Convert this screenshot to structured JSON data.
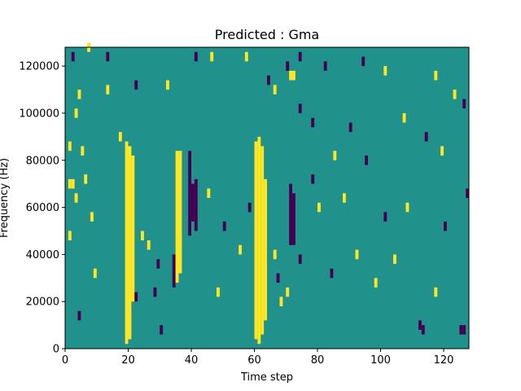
{
  "chart_data": {
    "type": "heatmap",
    "title": "Predicted : Gma",
    "xlabel": "Time step",
    "ylabel": "Frequency (Hz)",
    "xlim": [
      0,
      128
    ],
    "ylim": [
      0,
      128000
    ],
    "x_ticks": [
      0,
      20,
      40,
      60,
      80,
      100,
      120
    ],
    "y_ticks": [
      0,
      20000,
      40000,
      60000,
      80000,
      100000,
      120000
    ],
    "x_tick_labels": [
      "0",
      "20",
      "40",
      "60",
      "80",
      "100",
      "120"
    ],
    "y_tick_labels": [
      "0",
      "20000",
      "40000",
      "60000",
      "80000",
      "100000",
      "120000"
    ],
    "n_time_steps": 128,
    "n_freq_bins": 64,
    "colormap": "viridis",
    "classes": {
      "low": "#440154",
      "mid": "#21918c",
      "high": "#fde725"
    },
    "background_class": "mid",
    "high_columns": [
      {
        "t": 19,
        "y": [
          2000,
          88000
        ]
      },
      {
        "t": 20,
        "y": [
          4000,
          86000
        ]
      },
      {
        "t": 21,
        "y": [
          20000,
          82000
        ]
      },
      {
        "t": 35,
        "y": [
          28000,
          84000
        ]
      },
      {
        "t": 36,
        "y": [
          32000,
          84000
        ]
      },
      {
        "t": 60,
        "y": [
          4000,
          88000
        ]
      },
      {
        "t": 61,
        "y": [
          2000,
          90000
        ]
      },
      {
        "t": 62,
        "y": [
          6000,
          86000
        ]
      },
      {
        "t": 63,
        "y": [
          12000,
          72000
        ]
      }
    ],
    "low_columns": [
      {
        "t": 34,
        "y": [
          26000,
          40000
        ]
      },
      {
        "t": 39,
        "y": [
          48000,
          84000
        ]
      },
      {
        "t": 40,
        "y": [
          54000,
          70000
        ]
      },
      {
        "t": 41,
        "y": [
          50000,
          72000
        ]
      },
      {
        "t": 71,
        "y": [
          44000,
          70000
        ]
      },
      {
        "t": 72,
        "y": [
          44000,
          66000
        ]
      }
    ],
    "scattered_cells": [
      {
        "t": 1,
        "y": 84000,
        "v": "high"
      },
      {
        "t": 1,
        "y": 68000,
        "v": "high"
      },
      {
        "t": 2,
        "y": 68000,
        "v": "high"
      },
      {
        "t": 1,
        "y": 46000,
        "v": "high"
      },
      {
        "t": 3,
        "y": 62000,
        "v": "high"
      },
      {
        "t": 4,
        "y": 12000,
        "v": "low"
      },
      {
        "t": 5,
        "y": 82000,
        "v": "high"
      },
      {
        "t": 6,
        "y": 70000,
        "v": "high"
      },
      {
        "t": 8,
        "y": 54000,
        "v": "high"
      },
      {
        "t": 9,
        "y": 30000,
        "v": "high"
      },
      {
        "t": 3,
        "y": 98000,
        "v": "high"
      },
      {
        "t": 4,
        "y": 106000,
        "v": "high"
      },
      {
        "t": 13,
        "y": 108000,
        "v": "high"
      },
      {
        "t": 17,
        "y": 88000,
        "v": "high"
      },
      {
        "t": 22,
        "y": 20000,
        "v": "low"
      },
      {
        "t": 24,
        "y": 46000,
        "v": "high"
      },
      {
        "t": 26,
        "y": 42000,
        "v": "high"
      },
      {
        "t": 28,
        "y": 22000,
        "v": "low"
      },
      {
        "t": 29,
        "y": 34000,
        "v": "low"
      },
      {
        "t": 30,
        "y": 6000,
        "v": "low"
      },
      {
        "t": 45,
        "y": 64000,
        "v": "high"
      },
      {
        "t": 48,
        "y": 22000,
        "v": "high"
      },
      {
        "t": 50,
        "y": 50000,
        "v": "low"
      },
      {
        "t": 55,
        "y": 40000,
        "v": "high"
      },
      {
        "t": 58,
        "y": 58000,
        "v": "low"
      },
      {
        "t": 66,
        "y": 38000,
        "v": "high"
      },
      {
        "t": 67,
        "y": 28000,
        "v": "low"
      },
      {
        "t": 68,
        "y": 18000,
        "v": "high"
      },
      {
        "t": 70,
        "y": 22000,
        "v": "high"
      },
      {
        "t": 74,
        "y": 36000,
        "v": "low"
      },
      {
        "t": 78,
        "y": 70000,
        "v": "low"
      },
      {
        "t": 80,
        "y": 58000,
        "v": "high"
      },
      {
        "t": 84,
        "y": 30000,
        "v": "low"
      },
      {
        "t": 88,
        "y": 62000,
        "v": "high"
      },
      {
        "t": 92,
        "y": 38000,
        "v": "high"
      },
      {
        "t": 95,
        "y": 78000,
        "v": "low"
      },
      {
        "t": 98,
        "y": 26000,
        "v": "high"
      },
      {
        "t": 101,
        "y": 54000,
        "v": "low"
      },
      {
        "t": 104,
        "y": 36000,
        "v": "high"
      },
      {
        "t": 108,
        "y": 58000,
        "v": "high"
      },
      {
        "t": 112,
        "y": 8000,
        "v": "low"
      },
      {
        "t": 113,
        "y": 6000,
        "v": "low"
      },
      {
        "t": 117,
        "y": 22000,
        "v": "high"
      },
      {
        "t": 120,
        "y": 50000,
        "v": "low"
      },
      {
        "t": 125,
        "y": 6000,
        "v": "low"
      },
      {
        "t": 126,
        "y": 6000,
        "v": "low"
      },
      {
        "t": 127,
        "y": 64000,
        "v": "low"
      },
      {
        "t": 126,
        "y": 102000,
        "v": "low"
      },
      {
        "t": 117,
        "y": 114000,
        "v": "high"
      },
      {
        "t": 123,
        "y": 106000,
        "v": "high"
      },
      {
        "t": 101,
        "y": 116000,
        "v": "high"
      },
      {
        "t": 94,
        "y": 120000,
        "v": "low"
      },
      {
        "t": 82,
        "y": 118000,
        "v": "low"
      },
      {
        "t": 74,
        "y": 122000,
        "v": "low"
      },
      {
        "t": 70,
        "y": 118000,
        "v": "low"
      },
      {
        "t": 64,
        "y": 112000,
        "v": "low"
      },
      {
        "t": 57,
        "y": 122000,
        "v": "high"
      },
      {
        "t": 46,
        "y": 122000,
        "v": "high"
      },
      {
        "t": 41,
        "y": 122000,
        "v": "low"
      },
      {
        "t": 32,
        "y": 110000,
        "v": "high"
      },
      {
        "t": 22,
        "y": 110000,
        "v": "low"
      },
      {
        "t": 13,
        "y": 122000,
        "v": "low"
      },
      {
        "t": 7,
        "y": 126000,
        "v": "high"
      },
      {
        "t": 2,
        "y": 122000,
        "v": "low"
      },
      {
        "t": 71,
        "y": 114000,
        "v": "high"
      },
      {
        "t": 72,
        "y": 114000,
        "v": "high"
      },
      {
        "t": 66,
        "y": 108000,
        "v": "high"
      },
      {
        "t": 74,
        "y": 100000,
        "v": "low"
      },
      {
        "t": 78,
        "y": 94000,
        "v": "low"
      },
      {
        "t": 85,
        "y": 80000,
        "v": "high"
      },
      {
        "t": 90,
        "y": 92000,
        "v": "low"
      },
      {
        "t": 107,
        "y": 96000,
        "v": "high"
      },
      {
        "t": 114,
        "y": 88000,
        "v": "low"
      },
      {
        "t": 119,
        "y": 82000,
        "v": "high"
      }
    ]
  }
}
